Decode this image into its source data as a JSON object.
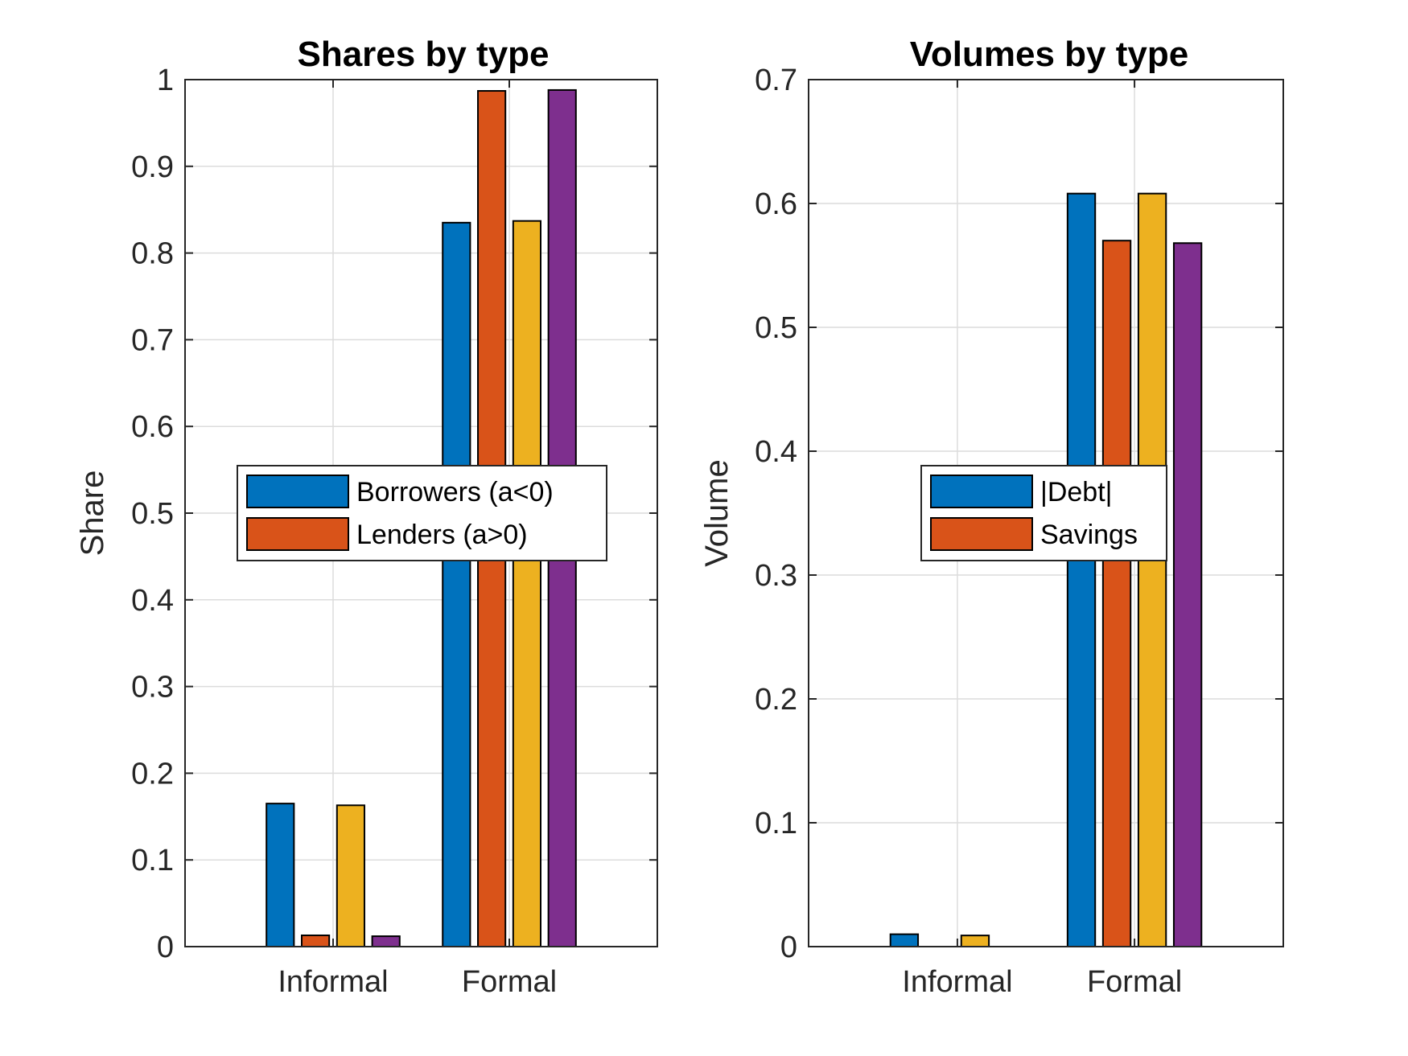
{
  "chart_data": [
    {
      "type": "bar",
      "title": "Shares by type",
      "xlabel": "",
      "ylabel": "Share",
      "categories": [
        "Informal",
        "Formal"
      ],
      "ylim": [
        0,
        1
      ],
      "yticks": [
        "0",
        "0.1",
        "0.2",
        "0.3",
        "0.4",
        "0.5",
        "0.6",
        "0.7",
        "0.8",
        "0.9",
        "1"
      ],
      "grid": true,
      "legend_location": "center",
      "legend": [
        "Borrowers (a<0)",
        "Lenders (a>0)"
      ],
      "series": [
        {
          "name": "Borrowers (a<0)",
          "color": "#0072BD",
          "values": [
            0.165,
            0.835
          ]
        },
        {
          "name": "Lenders (a>0)",
          "color": "#D95319",
          "values": [
            0.013,
            0.987
          ]
        },
        {
          "color": "#EDB120",
          "values": [
            0.163,
            0.837
          ]
        },
        {
          "color": "#7E2F8E",
          "values": [
            0.012,
            0.988
          ]
        }
      ]
    },
    {
      "type": "bar",
      "title": "Volumes by type",
      "xlabel": "",
      "ylabel": "Volume",
      "categories": [
        "Informal",
        "Formal"
      ],
      "ylim": [
        0,
        0.7
      ],
      "yticks": [
        "0",
        "0.1",
        "0.2",
        "0.3",
        "0.4",
        "0.5",
        "0.6",
        "0.7"
      ],
      "grid": true,
      "legend_location": "center",
      "legend": [
        "|Debt|",
        "Savings"
      ],
      "series": [
        {
          "name": "|Debt|",
          "color": "#0072BD",
          "values": [
            0.01,
            0.608
          ]
        },
        {
          "name": "Savings",
          "color": "#D95319",
          "values": [
            0.0,
            0.57
          ]
        },
        {
          "color": "#EDB120",
          "values": [
            0.009,
            0.608
          ]
        },
        {
          "color": "#7E2F8E",
          "values": [
            0.0,
            0.568
          ]
        }
      ]
    }
  ]
}
